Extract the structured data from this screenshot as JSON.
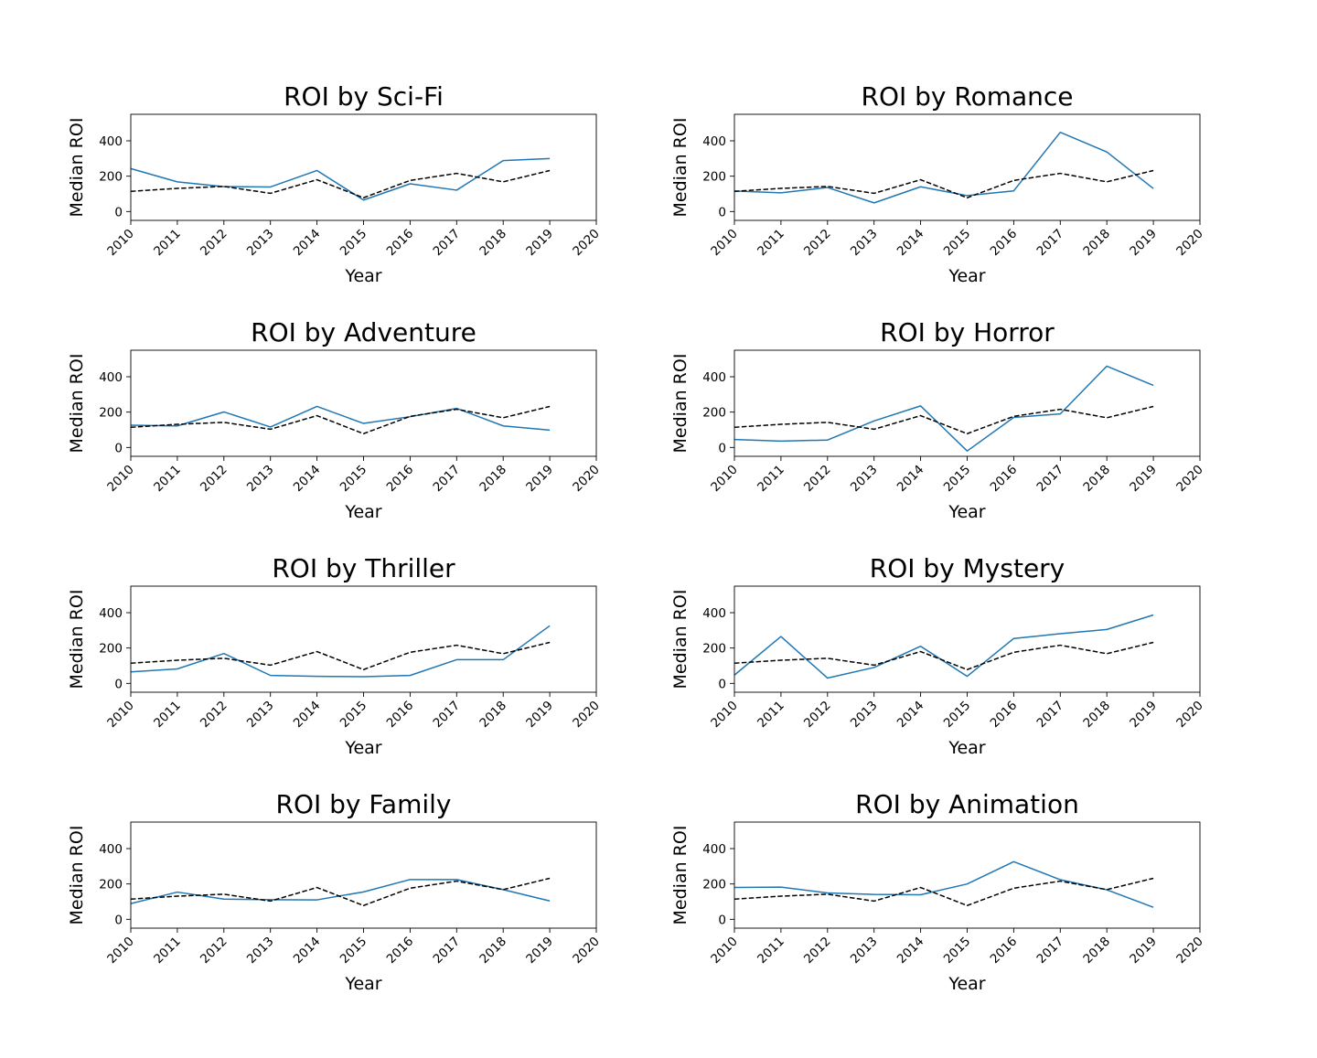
{
  "figure": {
    "colors": {
      "genre_line": "#1f77b4",
      "overall_line": "#000000",
      "background": "#ffffff"
    }
  },
  "chart_data": [
    {
      "type": "line",
      "title": "ROI by Sci-Fi",
      "xlabel": "Year",
      "ylabel": "Median ROI",
      "x": [
        2010,
        2011,
        2012,
        2013,
        2014,
        2015,
        2016,
        2017,
        2018,
        2019
      ],
      "xlim": [
        2010,
        2020
      ],
      "ylim": [
        -50,
        550
      ],
      "xticks": [
        2010,
        2011,
        2012,
        2013,
        2014,
        2015,
        2016,
        2017,
        2018,
        2019,
        2020
      ],
      "yticks": [
        0,
        200,
        400
      ],
      "grid": false,
      "series": [
        {
          "style": "solid",
          "color": "#1f77b4",
          "values": [
            243,
            168,
            141,
            139,
            232,
            65,
            157,
            121,
            288,
            300
          ]
        },
        {
          "style": "dashed",
          "color": "#000000",
          "values": [
            114,
            131,
            142,
            103,
            180,
            78,
            176,
            216,
            168,
            232
          ]
        }
      ]
    },
    {
      "type": "line",
      "title": "ROI by Romance",
      "xlabel": "Year",
      "ylabel": "Median ROI",
      "x": [
        2010,
        2011,
        2012,
        2013,
        2014,
        2015,
        2016,
        2017,
        2018,
        2019
      ],
      "xlim": [
        2010,
        2020
      ],
      "ylim": [
        -50,
        550
      ],
      "xticks": [
        2010,
        2011,
        2012,
        2013,
        2014,
        2015,
        2016,
        2017,
        2018,
        2019,
        2020
      ],
      "yticks": [
        0,
        200,
        400
      ],
      "grid": false,
      "series": [
        {
          "style": "solid",
          "color": "#1f77b4",
          "values": [
            116,
            106,
            136,
            49,
            140,
            90,
            117,
            448,
            337,
            130
          ]
        },
        {
          "style": "dashed",
          "color": "#000000",
          "values": [
            114,
            131,
            142,
            103,
            180,
            78,
            176,
            216,
            168,
            232
          ]
        }
      ]
    },
    {
      "type": "line",
      "title": "ROI by Adventure",
      "xlabel": "Year",
      "ylabel": "Median ROI",
      "x": [
        2010,
        2011,
        2012,
        2013,
        2014,
        2015,
        2016,
        2017,
        2018,
        2019
      ],
      "xlim": [
        2010,
        2020
      ],
      "ylim": [
        -50,
        550
      ],
      "xticks": [
        2010,
        2011,
        2012,
        2013,
        2014,
        2015,
        2016,
        2017,
        2018,
        2019,
        2020
      ],
      "yticks": [
        0,
        200,
        400
      ],
      "grid": false,
      "series": [
        {
          "style": "solid",
          "color": "#1f77b4",
          "values": [
            126,
            122,
            201,
            116,
            232,
            136,
            174,
            221,
            122,
            98
          ]
        },
        {
          "style": "dashed",
          "color": "#000000",
          "values": [
            114,
            131,
            142,
            103,
            180,
            78,
            176,
            216,
            168,
            232
          ]
        }
      ]
    },
    {
      "type": "line",
      "title": "ROI by Horror",
      "xlabel": "Year",
      "ylabel": "Median ROI",
      "x": [
        2010,
        2011,
        2012,
        2013,
        2014,
        2015,
        2016,
        2017,
        2018,
        2019
      ],
      "xlim": [
        2010,
        2020
      ],
      "ylim": [
        -50,
        550
      ],
      "xticks": [
        2010,
        2011,
        2012,
        2013,
        2014,
        2015,
        2016,
        2017,
        2018,
        2019,
        2020
      ],
      "yticks": [
        0,
        200,
        400
      ],
      "grid": false,
      "series": [
        {
          "style": "solid",
          "color": "#1f77b4",
          "values": [
            45,
            36,
            42,
            150,
            235,
            -20,
            170,
            190,
            460,
            351
          ]
        },
        {
          "style": "dashed",
          "color": "#000000",
          "values": [
            114,
            131,
            142,
            103,
            180,
            78,
            176,
            216,
            168,
            232
          ]
        }
      ]
    },
    {
      "type": "line",
      "title": "ROI by Thriller",
      "xlabel": "Year",
      "ylabel": "Median ROI",
      "x": [
        2010,
        2011,
        2012,
        2013,
        2014,
        2015,
        2016,
        2017,
        2018,
        2019
      ],
      "xlim": [
        2010,
        2020
      ],
      "ylim": [
        -50,
        550
      ],
      "xticks": [
        2010,
        2011,
        2012,
        2013,
        2014,
        2015,
        2016,
        2017,
        2018,
        2019,
        2020
      ],
      "yticks": [
        0,
        200,
        400
      ],
      "grid": false,
      "series": [
        {
          "style": "solid",
          "color": "#1f77b4",
          "values": [
            65,
            82,
            169,
            45,
            40,
            38,
            45,
            134,
            134,
            326
          ]
        },
        {
          "style": "dashed",
          "color": "#000000",
          "values": [
            114,
            131,
            142,
            103,
            180,
            78,
            176,
            216,
            168,
            232
          ]
        }
      ]
    },
    {
      "type": "line",
      "title": "ROI by Mystery",
      "xlabel": "Year",
      "ylabel": "Median ROI",
      "x": [
        2010,
        2011,
        2012,
        2013,
        2014,
        2015,
        2016,
        2017,
        2018,
        2019
      ],
      "xlim": [
        2010,
        2020
      ],
      "ylim": [
        -50,
        550
      ],
      "xticks": [
        2010,
        2011,
        2012,
        2013,
        2014,
        2015,
        2016,
        2017,
        2018,
        2019,
        2020
      ],
      "yticks": [
        0,
        200,
        400
      ],
      "grid": false,
      "series": [
        {
          "style": "solid",
          "color": "#1f77b4",
          "values": [
            47,
            265,
            30,
            90,
            210,
            40,
            254,
            281,
            305,
            387
          ]
        },
        {
          "style": "dashed",
          "color": "#000000",
          "values": [
            114,
            131,
            142,
            103,
            180,
            78,
            176,
            216,
            168,
            232
          ]
        }
      ]
    },
    {
      "type": "line",
      "title": "ROI by Family",
      "xlabel": "Year",
      "ylabel": "Median ROI",
      "x": [
        2010,
        2011,
        2012,
        2013,
        2014,
        2015,
        2016,
        2017,
        2018,
        2019
      ],
      "xlim": [
        2010,
        2020
      ],
      "ylim": [
        -50,
        550
      ],
      "xticks": [
        2010,
        2011,
        2012,
        2013,
        2014,
        2015,
        2016,
        2017,
        2018,
        2019,
        2020
      ],
      "yticks": [
        0,
        200,
        400
      ],
      "grid": false,
      "series": [
        {
          "style": "solid",
          "color": "#1f77b4",
          "values": [
            89,
            154,
            114,
            111,
            110,
            155,
            225,
            225,
            168,
            104
          ]
        },
        {
          "style": "dashed",
          "color": "#000000",
          "values": [
            114,
            131,
            142,
            103,
            180,
            78,
            176,
            216,
            168,
            232
          ]
        }
      ]
    },
    {
      "type": "line",
      "title": "ROI by Animation",
      "xlabel": "Year",
      "ylabel": "Median ROI",
      "x": [
        2010,
        2011,
        2012,
        2013,
        2014,
        2015,
        2016,
        2017,
        2018,
        2019
      ],
      "xlim": [
        2010,
        2020
      ],
      "ylim": [
        -50,
        550
      ],
      "xticks": [
        2010,
        2011,
        2012,
        2013,
        2014,
        2015,
        2016,
        2017,
        2018,
        2019,
        2020
      ],
      "yticks": [
        0,
        200,
        400
      ],
      "grid": false,
      "series": [
        {
          "style": "solid",
          "color": "#1f77b4",
          "values": [
            180,
            182,
            149,
            141,
            139,
            200,
            326,
            224,
            167,
            68
          ]
        },
        {
          "style": "dashed",
          "color": "#000000",
          "values": [
            114,
            131,
            142,
            103,
            180,
            78,
            176,
            216,
            168,
            232
          ]
        }
      ]
    }
  ]
}
